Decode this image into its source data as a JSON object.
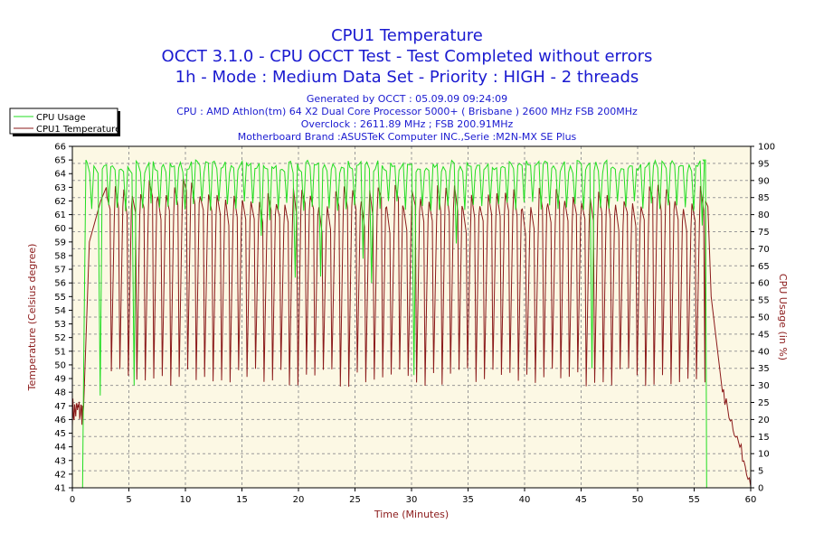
{
  "chart_data": {
    "type": "line",
    "title": "CPU1 Temperature",
    "subtitle_lines": [
      "OCCT 3.1.0 - CPU OCCT Test - Test Completed without errors",
      "1h - Mode : Medium Data Set - Priority : HIGH - 2 threads"
    ],
    "info_lines": [
      "Generated by OCCT : 05.09.09 09:24:09",
      "CPU : AMD Athlon(tm) 64 X2 Dual Core Processor 5000+ ( Brisbane ) 2600 MHz FSB 200MHz",
      "Overclock : 2611.89 MHz ; FSB 200.91MHz",
      "Motherboard Brand :ASUSTeK Computer INC.,Serie :M2N-MX SE Plus"
    ],
    "xlabel": "Time (Minutes)",
    "ylabel_left": "Temperature (Celsius degree)",
    "ylabel_right": "CPU Usage (in %)",
    "xlim": [
      0,
      60
    ],
    "ylim_left": [
      41,
      66
    ],
    "ylim_right": [
      0,
      100
    ],
    "x_ticks": [
      0,
      5,
      10,
      15,
      20,
      25,
      30,
      35,
      40,
      45,
      50,
      55,
      60
    ],
    "y_left_ticks": [
      41,
      42,
      43,
      44,
      45,
      46,
      47,
      48,
      49,
      50,
      51,
      52,
      53,
      54,
      55,
      56,
      57,
      58,
      59,
      60,
      61,
      62,
      63,
      64,
      65,
      66
    ],
    "y_right_ticks": [
      0,
      5,
      10,
      15,
      20,
      25,
      30,
      35,
      40,
      45,
      50,
      55,
      60,
      65,
      70,
      75,
      80,
      85,
      90,
      95,
      100
    ],
    "grid": true,
    "legend_position": "top-left",
    "series": [
      {
        "name": "CPU Usage",
        "axis": "right",
        "color": "#22dd22",
        "pattern": {
          "start": 1.0,
          "end": 56.0,
          "period": 0.75,
          "high": 96,
          "low": 84,
          "dip_low": [
            27,
            30,
            33,
            35,
            38,
            40,
            45
          ],
          "ramp_end_value": 96
        },
        "points": [
          [
            0.9,
            0
          ],
          [
            1.0,
            35
          ],
          [
            1.2,
            96
          ],
          [
            3.0,
            88
          ],
          [
            4.9,
            30
          ],
          [
            5.0,
            95
          ],
          [
            29.8,
            30
          ],
          [
            30.0,
            96
          ],
          [
            45.2,
            35
          ],
          [
            45.4,
            96
          ],
          [
            55.5,
            95
          ],
          [
            56.0,
            96
          ],
          [
            56.1,
            0
          ],
          [
            60,
            0
          ]
        ]
      },
      {
        "name": "CPU1 Temperature",
        "axis": "left",
        "color": "#8b1a1a",
        "pattern": {
          "start": 0.0,
          "warmup_end": 3.0,
          "cycle_start": 3.0,
          "cycle_end": 56.0,
          "period": 0.75,
          "peak": 63.5,
          "trough": 49,
          "cooldown_end_value": 41.5
        },
        "points": [
          [
            0,
            46.5
          ],
          [
            0.8,
            45.5
          ],
          [
            1.0,
            47.0
          ],
          [
            1.5,
            59.0
          ],
          [
            2.5,
            62.0
          ],
          [
            3.0,
            63.0
          ],
          [
            3.2,
            49.5
          ],
          [
            10.0,
            64.0
          ],
          [
            30.0,
            63.0
          ],
          [
            50.0,
            63.0
          ],
          [
            56.0,
            62.0
          ],
          [
            56.5,
            55.0
          ],
          [
            57.5,
            48.0
          ],
          [
            58.5,
            45.0
          ],
          [
            59.5,
            43.0
          ],
          [
            60,
            41.5
          ]
        ]
      }
    ]
  }
}
